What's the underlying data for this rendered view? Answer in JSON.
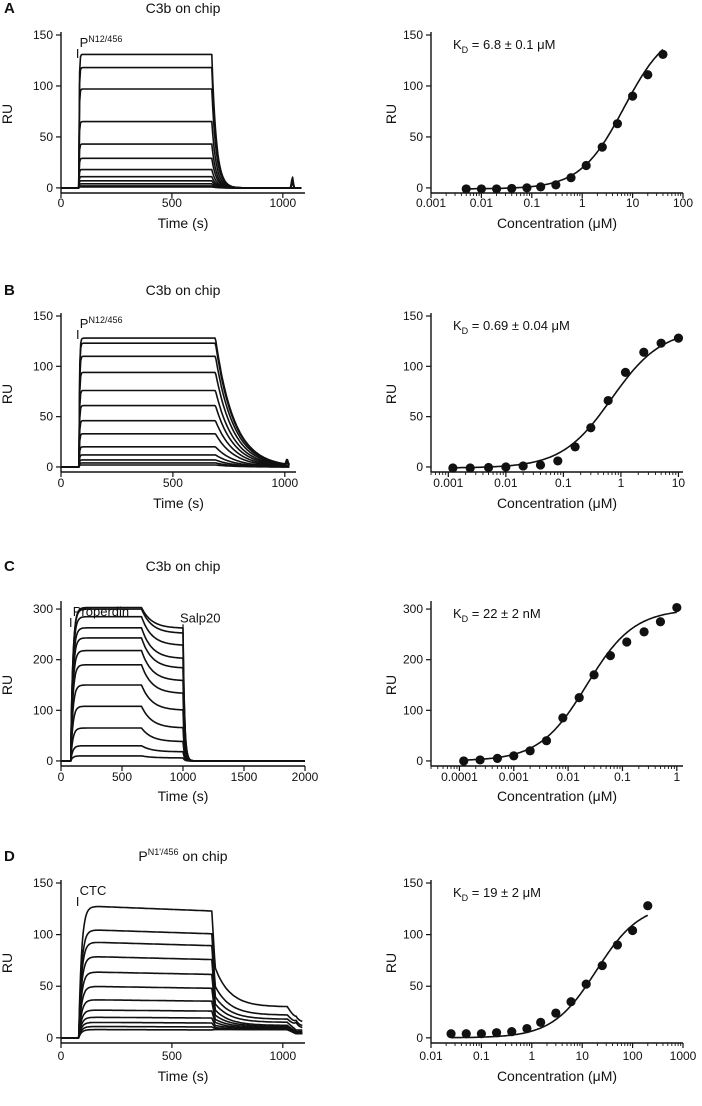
{
  "figure": {
    "ink_color": "#111111",
    "background": "#ffffff"
  },
  "chart_data": [
    {
      "panel_letter": "A",
      "type": "line",
      "subtype": "sensorgram",
      "title": "C3b on chip",
      "xlabel": "Time (s)",
      "ylabel": "RU",
      "xlim": [
        0,
        1100
      ],
      "ylim": [
        -5,
        150
      ],
      "xticks": [
        0,
        500,
        1000
      ],
      "xtick_labels": [
        "0",
        "500",
        "1000"
      ],
      "yticks": [
        0,
        50,
        100,
        150
      ],
      "ytick_labels": [
        "0",
        "50",
        "100",
        "150"
      ],
      "annotations": [
        {
          "text": "P",
          "sup": "N12/456",
          "x": 75
        }
      ],
      "injection_start": 80,
      "injection_end": 680,
      "x_end": 1085,
      "curve_model": "onoff",
      "kon": 0.5,
      "koff": 0.05,
      "series_plateaus": [
        131,
        118,
        97,
        65,
        43,
        29,
        18,
        11,
        7,
        4,
        2,
        1
      ],
      "spike": {
        "x": 1043,
        "height": 12
      }
    },
    {
      "panel_letter": "A",
      "type": "scatter",
      "subtype": "dose-response",
      "title": "",
      "xlabel": "Concentration (μM)",
      "ylabel": "RU",
      "xscale": "log",
      "xlim": [
        0.001,
        100
      ],
      "ylim": [
        -5,
        150
      ],
      "xticks": [
        0.001,
        0.01,
        0.1,
        1,
        10,
        100
      ],
      "xtick_labels": [
        "0.001",
        "0.01",
        "0.1",
        "1",
        "10",
        "100"
      ],
      "yticks": [
        0,
        50,
        100,
        150
      ],
      "ytick_labels": [
        "0",
        "50",
        "100",
        "150"
      ],
      "kd_label": {
        "main": "K",
        "sub": "D",
        "rest": " = 6.8 ± 0.1 μM"
      },
      "fit": {
        "kd": 6.8,
        "bmax": 160,
        "n": 1.0
      },
      "points": {
        "x": [
          0.005,
          0.01,
          0.02,
          0.04,
          0.08,
          0.15,
          0.3,
          0.6,
          1.2,
          2.5,
          5,
          10,
          20,
          40
        ],
        "y": [
          -1,
          -1,
          -1,
          -0.5,
          0,
          1,
          3,
          10,
          22,
          40,
          63,
          90,
          111,
          131
        ]
      }
    },
    {
      "panel_letter": "B",
      "type": "line",
      "subtype": "sensorgram",
      "title": "C3b on chip",
      "xlabel": "Time (s)",
      "ylabel": "RU",
      "xlim": [
        0,
        1050
      ],
      "ylim": [
        -5,
        150
      ],
      "xticks": [
        0,
        500,
        1000
      ],
      "xtick_labels": [
        "0",
        "500",
        "1000"
      ],
      "yticks": [
        0,
        50,
        100,
        150
      ],
      "ytick_labels": [
        "0",
        "50",
        "100",
        "150"
      ],
      "annotations": [
        {
          "text": "P",
          "sup": "N12/456",
          "x": 75
        }
      ],
      "injection_start": 80,
      "injection_end": 690,
      "x_end": 1020,
      "curve_model": "onoff",
      "kon": 0.4,
      "koff": 0.012,
      "series_plateaus": [
        128,
        123,
        110,
        94,
        76,
        61,
        46,
        33,
        20,
        12,
        7,
        4,
        2
      ],
      "spike": {
        "x": 1010,
        "height": 6
      }
    },
    {
      "panel_letter": "B",
      "type": "scatter",
      "subtype": "dose-response",
      "title": "",
      "xlabel": "Concentration (μM)",
      "ylabel": "RU",
      "xscale": "log",
      "xlim": [
        0.0005,
        12
      ],
      "ylim": [
        -5,
        150
      ],
      "xticks": [
        0.001,
        0.01,
        0.1,
        1,
        10
      ],
      "xtick_labels": [
        "0.001",
        "0.01",
        "0.1",
        "1",
        "10"
      ],
      "yticks": [
        0,
        50,
        100,
        150
      ],
      "ytick_labels": [
        "0",
        "50",
        "100",
        "150"
      ],
      "kd_label": {
        "main": "K",
        "sub": "D",
        "rest": " = 0.69 ± 0.04 μM"
      },
      "fit": {
        "kd": 0.69,
        "bmax": 138,
        "n": 1.0
      },
      "points": {
        "x": [
          0.0012,
          0.0024,
          0.005,
          0.01,
          0.02,
          0.04,
          0.08,
          0.16,
          0.3,
          0.6,
          1.2,
          2.5,
          5,
          10
        ],
        "y": [
          -1,
          -1,
          -0.5,
          0,
          1,
          2,
          6,
          20,
          39,
          66,
          94,
          114,
          123,
          128
        ]
      }
    },
    {
      "panel_letter": "C",
      "type": "line",
      "subtype": "sensorgram",
      "title": "C3b on chip",
      "xlabel": "Time (s)",
      "ylabel": "RU",
      "xlim": [
        0,
        2000
      ],
      "ylim": [
        -10,
        310
      ],
      "xticks": [
        0,
        500,
        1000,
        1500,
        2000
      ],
      "xtick_labels": [
        "0",
        "500",
        "1000",
        "1500",
        "2000"
      ],
      "yticks": [
        0,
        100,
        200,
        300
      ],
      "ytick_labels": [
        "0",
        "100",
        "200",
        "300"
      ],
      "annotations": [
        {
          "text": "Properdin",
          "sup": "",
          "x": 80
        },
        {
          "text": "Salp20",
          "sup": "",
          "x": 1000
        }
      ],
      "injection_start": 80,
      "injection_end": 660,
      "second_injection": 1000,
      "x_end": 2000,
      "curve_model": "two-step",
      "series_plateaus": [
        303,
        300,
        285,
        263,
        243,
        218,
        190,
        150,
        108,
        65,
        30,
        10
      ],
      "series_after_salp20": [
        262,
        252,
        228,
        202,
        183,
        158,
        133,
        100,
        65,
        38,
        18,
        6
      ]
    },
    {
      "panel_letter": "C",
      "type": "scatter",
      "subtype": "dose-response",
      "title": "",
      "xlabel": "Concentration (μM)",
      "ylabel": "RU",
      "xscale": "log",
      "xlim": [
        3e-05,
        1.3
      ],
      "ylim": [
        -10,
        310
      ],
      "xticks": [
        0.0001,
        0.001,
        0.01,
        0.1,
        1
      ],
      "xtick_labels": [
        "0.0001",
        "0.001",
        "0.01",
        "0.1",
        "1"
      ],
      "yticks": [
        0,
        100,
        200,
        300
      ],
      "ytick_labels": [
        "0",
        "100",
        "200",
        "300"
      ],
      "kd_label": {
        "main": "K",
        "sub": "D",
        "rest": " = 22 ± 2 nM"
      },
      "fit": {
        "kd": 0.022,
        "bmax": 300,
        "n": 1.0
      },
      "points": {
        "x": [
          0.00012,
          0.00024,
          0.0005,
          0.001,
          0.002,
          0.004,
          0.008,
          0.016,
          0.03,
          0.06,
          0.12,
          0.25,
          0.5,
          1.0
        ],
        "y": [
          0,
          2,
          5,
          10,
          20,
          40,
          85,
          125,
          170,
          208,
          235,
          255,
          275,
          303
        ]
      }
    },
    {
      "panel_letter": "D",
      "type": "line",
      "subtype": "sensorgram",
      "title": "P",
      "title_sup": "N1'/456",
      "title_rest": " on chip",
      "xlabel": "Time (s)",
      "ylabel": "RU",
      "xlim": [
        0,
        1100
      ],
      "ylim": [
        -5,
        150
      ],
      "xticks": [
        0,
        500,
        1000
      ],
      "xtick_labels": [
        "0",
        "500",
        "1000"
      ],
      "yticks": [
        0,
        50,
        100,
        150
      ],
      "ytick_labels": [
        "0",
        "50",
        "100",
        "150"
      ],
      "annotations": [
        {
          "text": "CTC",
          "sup": "",
          "x": 75
        }
      ],
      "injection_start": 80,
      "injection_end": 680,
      "x_end": 1090,
      "curve_model": "ctc",
      "series_plateaus": [
        128,
        105,
        93,
        79,
        64,
        50,
        37,
        27,
        20,
        15,
        11,
        8
      ],
      "series_post_peak": [
        68,
        50,
        40,
        33,
        27,
        22,
        18,
        15,
        12,
        10,
        9,
        8
      ],
      "series_post_end": [
        30,
        22,
        18,
        15,
        12,
        11,
        10,
        9,
        9,
        8,
        8,
        8
      ]
    },
    {
      "panel_letter": "D",
      "type": "scatter",
      "subtype": "dose-response",
      "title": "",
      "xlabel": "Concentration (μM)",
      "ylabel": "RU",
      "xscale": "log",
      "xlim": [
        0.01,
        1000
      ],
      "ylim": [
        -5,
        150
      ],
      "xticks": [
        0.01,
        0.1,
        1,
        10,
        100,
        1000
      ],
      "xtick_labels": [
        "0.01",
        "0.1",
        "1",
        "10",
        "100",
        "1000"
      ],
      "yticks": [
        0,
        50,
        100,
        150
      ],
      "ytick_labels": [
        "0",
        "50",
        "100",
        "150"
      ],
      "kd_label": {
        "main": "K",
        "sub": "D",
        "rest": " = 19 ± 2 μM"
      },
      "fit": {
        "kd": 19,
        "bmax": 130,
        "n": 1.0,
        "x_max": 200
      },
      "points": {
        "x": [
          0.025,
          0.05,
          0.1,
          0.2,
          0.4,
          0.8,
          1.5,
          3,
          6,
          12,
          25,
          50,
          100,
          200
        ],
        "y": [
          4,
          4,
          4,
          5,
          6,
          9,
          15,
          24,
          35,
          52,
          70,
          90,
          104,
          128
        ]
      }
    }
  ]
}
